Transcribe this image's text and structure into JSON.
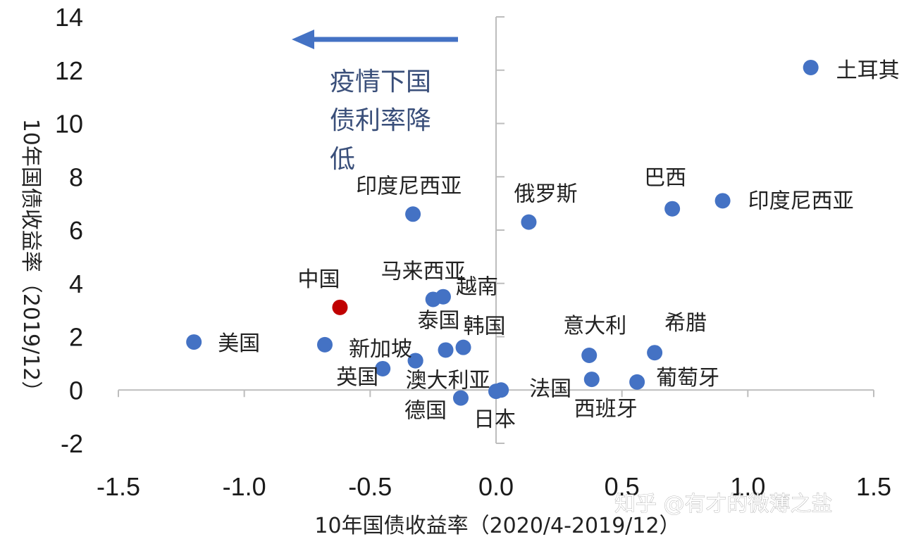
{
  "chart_data": {
    "type": "scatter",
    "xlabel": "10年国债收益率（2020/4-2019/12）",
    "ylabel": "10年国债收益率（2019/12）",
    "xlim": [
      -1.5,
      1.5
    ],
    "ylim": [
      -2,
      14
    ],
    "x_ticks": [
      "-1.5",
      "-1.0",
      "-0.5",
      "0.0",
      "0.5",
      "1.0",
      "1.5"
    ],
    "y_ticks": [
      "-2",
      "0",
      "2",
      "4",
      "6",
      "8",
      "10",
      "12",
      "14"
    ],
    "grid": false,
    "annotation": {
      "lines": [
        "疫情下国",
        "债利率降",
        "低"
      ],
      "arrow_direction": "left"
    },
    "colors": {
      "default": "#4472c4",
      "highlight": "#c00000",
      "axis": "#bdbdbd",
      "annotation": "#3a4f7a"
    },
    "points": [
      {
        "label": "土耳其",
        "x": 1.25,
        "y": 12.1,
        "color": "#4472c4"
      },
      {
        "label": "巴西",
        "x": 0.7,
        "y": 6.8,
        "color": "#4472c4"
      },
      {
        "label": "印度尼西亚",
        "x": 0.9,
        "y": 7.1,
        "color": "#4472c4"
      },
      {
        "label": "印度尼西亚",
        "x": -0.33,
        "y": 6.6,
        "color": "#4472c4"
      },
      {
        "label": "俄罗斯",
        "x": 0.13,
        "y": 6.3,
        "color": "#4472c4"
      },
      {
        "label": "中国",
        "x": -0.62,
        "y": 3.1,
        "color": "#c00000"
      },
      {
        "label": "马来西亚",
        "x": -0.25,
        "y": 3.4,
        "color": "#4472c4"
      },
      {
        "label": "越南",
        "x": -0.21,
        "y": 3.5,
        "color": "#4472c4"
      },
      {
        "label": "美国",
        "x": -1.2,
        "y": 1.8,
        "color": "#4472c4"
      },
      {
        "label": "新加坡",
        "x": -0.68,
        "y": 1.7,
        "color": "#4472c4"
      },
      {
        "label": "泰国",
        "x": -0.2,
        "y": 1.5,
        "color": "#4472c4"
      },
      {
        "label": "韩国",
        "x": -0.13,
        "y": 1.6,
        "color": "#4472c4"
      },
      {
        "label": "",
        "x": -0.32,
        "y": 1.1,
        "color": "#4472c4"
      },
      {
        "label": "英国",
        "x": -0.45,
        "y": 0.8,
        "color": "#4472c4"
      },
      {
        "label": "澳大利亚",
        "x": -0.32,
        "y": 1.1,
        "color": "#4472c4"
      },
      {
        "label": "德国",
        "x": -0.14,
        "y": -0.3,
        "color": "#4472c4"
      },
      {
        "label": "日本",
        "x": 0.0,
        "y": -0.05,
        "color": "#4472c4"
      },
      {
        "label": "法国",
        "x": 0.02,
        "y": 0.0,
        "color": "#4472c4"
      },
      {
        "label": "意大利",
        "x": 0.37,
        "y": 1.3,
        "color": "#4472c4"
      },
      {
        "label": "西班牙",
        "x": 0.38,
        "y": 0.4,
        "color": "#4472c4"
      },
      {
        "label": "希腊",
        "x": 0.63,
        "y": 1.4,
        "color": "#4472c4"
      },
      {
        "label": "葡萄牙",
        "x": 0.56,
        "y": 0.3,
        "color": "#4472c4"
      }
    ]
  },
  "watermark": "知乎 @有才的微薄之盐"
}
